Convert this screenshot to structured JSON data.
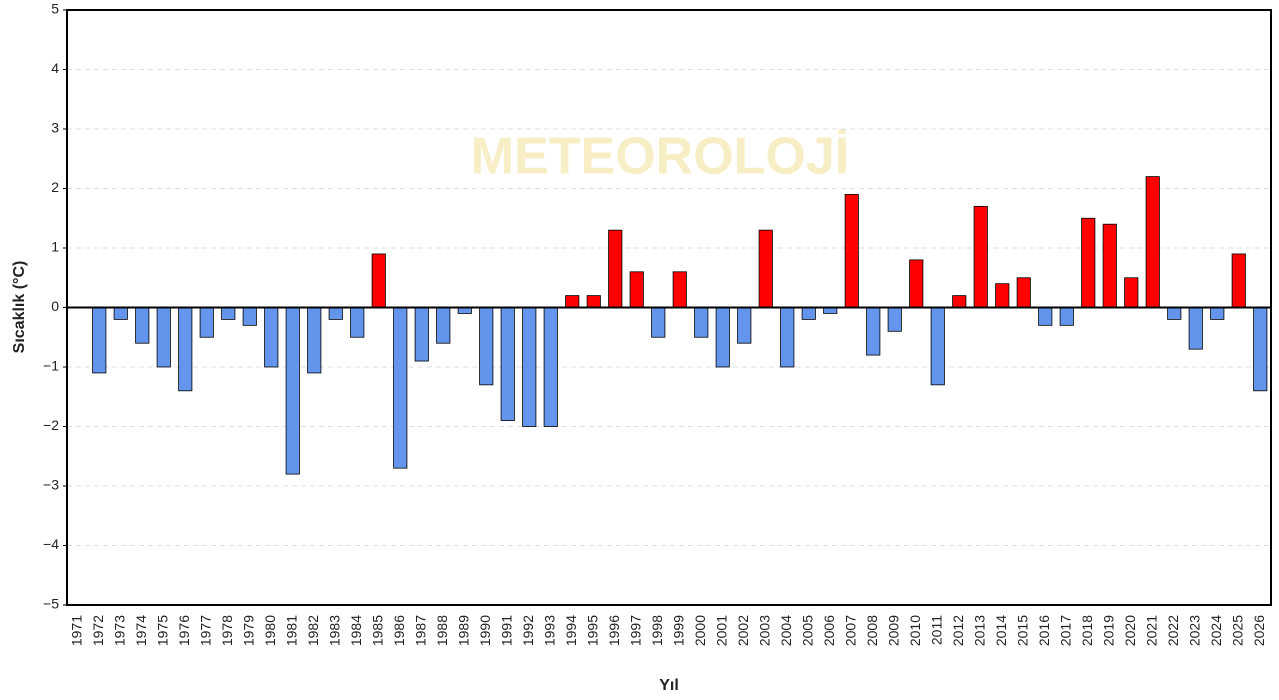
{
  "chart_data": {
    "type": "bar",
    "watermark": "METEOROLOJİ",
    "x_label": "Yıl",
    "y_label": "Sıcaklık (°C)",
    "categories": [
      "1971",
      "1972",
      "1973",
      "1974",
      "1975",
      "1976",
      "1977",
      "1978",
      "1979",
      "1980",
      "1981",
      "1982",
      "1983",
      "1984",
      "1985",
      "1986",
      "1987",
      "1988",
      "1989",
      "1990",
      "1991",
      "1992",
      "1993",
      "1994",
      "1995",
      "1996",
      "1997",
      "1998",
      "1999",
      "2000",
      "2001",
      "2002",
      "2003",
      "2004",
      "2005",
      "2006",
      "2007",
      "2008",
      "2009",
      "2010",
      "2011",
      "2012",
      "2013",
      "2014",
      "2015",
      "2016",
      "2017",
      "2018",
      "2019",
      "2020",
      "2021",
      "2022",
      "2023",
      "2024",
      "2025",
      "2026"
    ],
    "values": [
      null,
      -1.1,
      -0.2,
      -0.6,
      -1.0,
      -1.4,
      -0.5,
      -0.2,
      -0.3,
      -1.0,
      -2.8,
      -1.1,
      -0.2,
      -0.5,
      0.9,
      -2.7,
      -0.9,
      -0.6,
      -0.1,
      -1.3,
      -1.9,
      -2.0,
      -2.0,
      0.2,
      0.2,
      1.3,
      0.6,
      -0.5,
      0.6,
      -0.5,
      -1.0,
      -0.6,
      1.3,
      -1.0,
      -0.2,
      -0.1,
      1.9,
      -0.8,
      -0.4,
      0.8,
      -1.3,
      0.2,
      1.7,
      0.4,
      0.5,
      -0.3,
      -0.3,
      1.5,
      1.4,
      0.5,
      2.2,
      -0.2,
      -0.7,
      -0.2,
      0.9,
      -1.4
    ],
    "positive_color": "#ff0000",
    "negative_color": "#6495ed",
    "ylim": [
      -5,
      5
    ],
    "yticks": [
      {
        "value": -5,
        "label": "−5"
      },
      {
        "value": -4,
        "label": "−4"
      },
      {
        "value": -3,
        "label": "−3"
      },
      {
        "value": -2,
        "label": "−2"
      },
      {
        "value": -1,
        "label": "−1"
      },
      0,
      1,
      2,
      3,
      4,
      5
    ],
    "grid": true
  }
}
